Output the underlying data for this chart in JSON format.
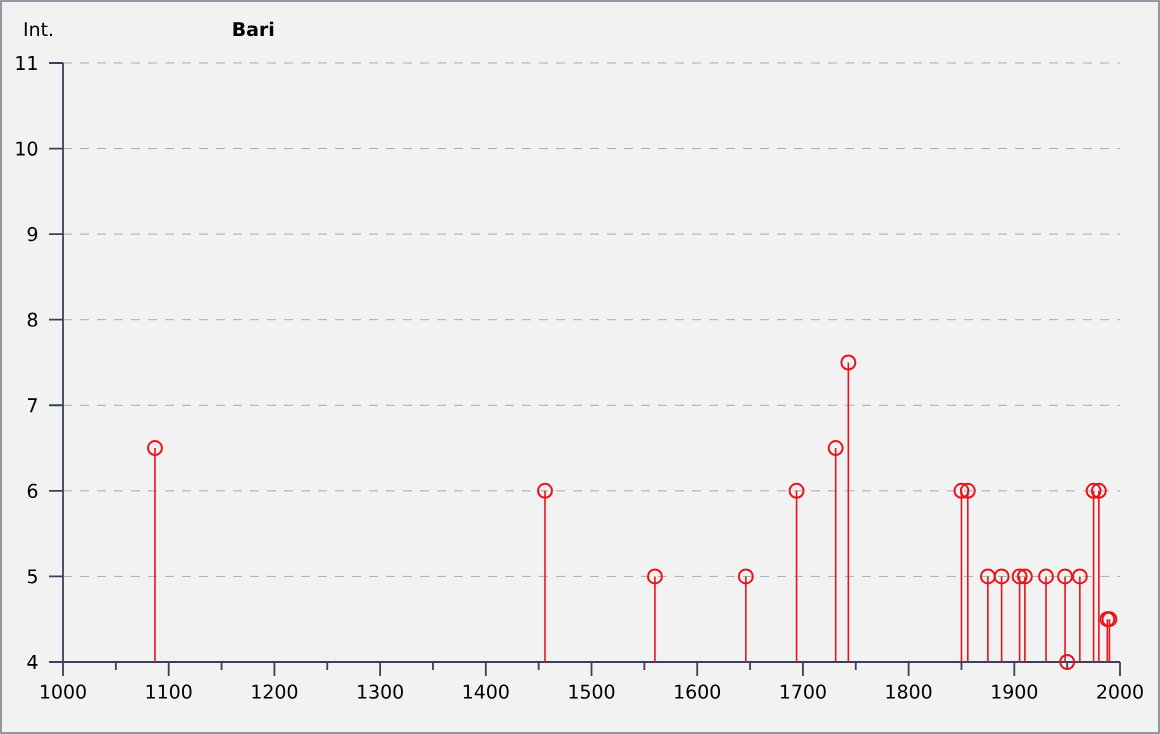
{
  "chart_data": {
    "type": "lollipop",
    "title": "Bari",
    "ylabel": "Int.",
    "x": [
      1087,
      1456,
      1560,
      1646,
      1694,
      1731,
      1743,
      1850,
      1856,
      1875,
      1888,
      1905,
      1910,
      1930,
      1948,
      1950,
      1962,
      1975,
      1980,
      1988,
      1990
    ],
    "values": [
      6.5,
      6,
      5,
      5,
      6,
      6.5,
      7.5,
      6,
      6,
      5,
      5,
      5,
      5,
      5,
      5,
      4,
      5,
      6,
      6,
      4.5,
      4.5
    ],
    "color": "#e8141c",
    "marker": "circle",
    "xlim": [
      1000,
      2000
    ],
    "xticks": [
      1000,
      1100,
      1200,
      1300,
      1400,
      1500,
      1600,
      1700,
      1800,
      1900,
      2000
    ],
    "ylim": [
      4,
      11
    ],
    "yticks": [
      4,
      5,
      6,
      7,
      8,
      9,
      10,
      11
    ],
    "grid": "y"
  }
}
